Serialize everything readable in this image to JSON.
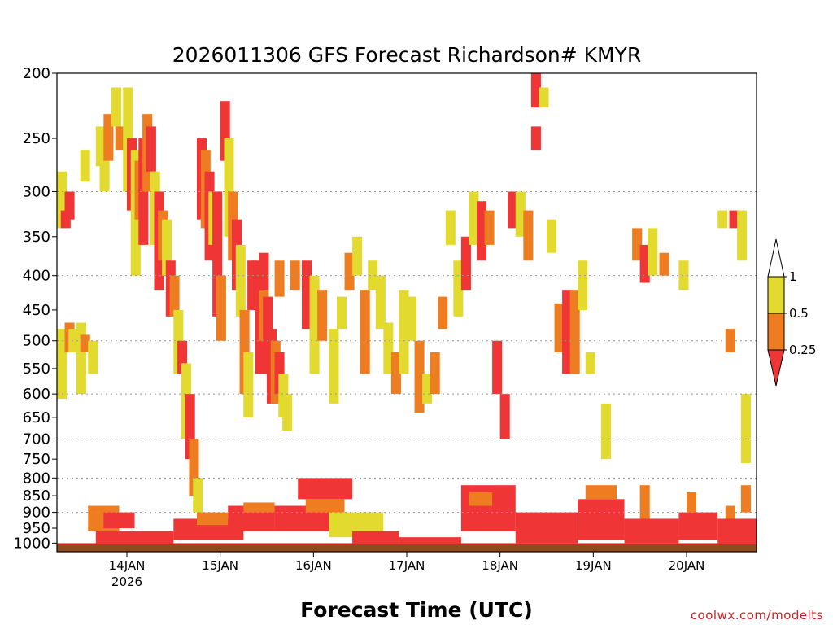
{
  "chart_data": {
    "type": "heatmap",
    "title": "2026011306 GFS Forecast Richardson# KMYR",
    "xlabel": "Forecast Time (UTC)",
    "ylabel": "",
    "credit": "coolwx.com/modelts",
    "y_axis": {
      "scale": "log",
      "reversed": true,
      "range": [
        200,
        1030
      ],
      "ticks": [
        200,
        250,
        300,
        350,
        400,
        450,
        500,
        550,
        600,
        650,
        700,
        750,
        800,
        850,
        900,
        950,
        1000
      ],
      "gridlines": [
        300,
        400,
        500,
        600,
        700,
        800,
        900
      ]
    },
    "x_axis": {
      "range_hours": [
        0,
        180
      ],
      "ticks": [
        {
          "label": "14JAN",
          "sublabel": "2026",
          "hour": 18
        },
        {
          "label": "15JAN",
          "sublabel": "",
          "hour": 42
        },
        {
          "label": "16JAN",
          "sublabel": "",
          "hour": 66
        },
        {
          "label": "17JAN",
          "sublabel": "",
          "hour": 90
        },
        {
          "label": "18JAN",
          "sublabel": "",
          "hour": 114
        },
        {
          "label": "19JAN",
          "sublabel": "",
          "hour": 138
        },
        {
          "label": "20JAN",
          "sublabel": "",
          "hour": 162
        }
      ]
    },
    "colorbar": {
      "labels": [
        "1",
        "0.5",
        "0.25"
      ],
      "bins": [
        {
          "range": "0.5-1",
          "color": "#e3da2f"
        },
        {
          "range": "0.25-0.5",
          "color": "#ee7c20"
        },
        {
          "range": "<0.25",
          "color": "#ef3535"
        }
      ]
    },
    "colors": {
      "yellow": "#e3da2f",
      "orange": "#ee7c20",
      "red": "#ef3535",
      "ground": "#8b4c1f"
    },
    "cells": [
      {
        "t": 0,
        "p0": 280,
        "p1": 340,
        "c": "yellow"
      },
      {
        "t": 1,
        "p0": 320,
        "p1": 340,
        "c": "red"
      },
      {
        "t": 2,
        "p0": 300,
        "p1": 330,
        "c": "red"
      },
      {
        "t": 0,
        "p0": 480,
        "p1": 610,
        "c": "yellow"
      },
      {
        "t": 2,
        "p0": 470,
        "p1": 520,
        "c": "orange"
      },
      {
        "t": 3,
        "p0": 480,
        "p1": 520,
        "c": "yellow"
      },
      {
        "t": 5,
        "p0": 470,
        "p1": 600,
        "c": "yellow"
      },
      {
        "t": 6,
        "p0": 490,
        "p1": 520,
        "c": "orange"
      },
      {
        "t": 8,
        "p0": 500,
        "p1": 560,
        "c": "yellow"
      },
      {
        "t": 10,
        "p0": 240,
        "p1": 275,
        "c": "yellow"
      },
      {
        "t": 6,
        "p0": 260,
        "p1": 290,
        "c": "yellow"
      },
      {
        "t": 11,
        "p0": 260,
        "p1": 300,
        "c": "yellow"
      },
      {
        "t": 12,
        "p0": 230,
        "p1": 270,
        "c": "orange"
      },
      {
        "t": 14,
        "p0": 210,
        "p1": 240,
        "c": "yellow"
      },
      {
        "t": 15,
        "p0": 240,
        "p1": 260,
        "c": "orange"
      },
      {
        "t": 17,
        "p0": 210,
        "p1": 300,
        "c": "yellow"
      },
      {
        "t": 18,
        "p0": 250,
        "p1": 320,
        "c": "red"
      },
      {
        "t": 19,
        "p0": 260,
        "p1": 400,
        "c": "yellow"
      },
      {
        "t": 20,
        "p0": 270,
        "p1": 330,
        "c": "orange"
      },
      {
        "t": 21,
        "p0": 250,
        "p1": 360,
        "c": "red"
      },
      {
        "t": 22,
        "p0": 230,
        "p1": 300,
        "c": "orange"
      },
      {
        "t": 23,
        "p0": 240,
        "p1": 280,
        "c": "red"
      },
      {
        "t": 24,
        "p0": 280,
        "p1": 360,
        "c": "yellow"
      },
      {
        "t": 25,
        "p0": 300,
        "p1": 420,
        "c": "red"
      },
      {
        "t": 26,
        "p0": 320,
        "p1": 380,
        "c": "orange"
      },
      {
        "t": 27,
        "p0": 330,
        "p1": 400,
        "c": "yellow"
      },
      {
        "t": 28,
        "p0": 380,
        "p1": 460,
        "c": "red"
      },
      {
        "t": 29,
        "p0": 400,
        "p1": 460,
        "c": "orange"
      },
      {
        "t": 30,
        "p0": 450,
        "p1": 560,
        "c": "yellow"
      },
      {
        "t": 31,
        "p0": 500,
        "p1": 560,
        "c": "red"
      },
      {
        "t": 32,
        "p0": 540,
        "p1": 700,
        "c": "yellow"
      },
      {
        "t": 33,
        "p0": 600,
        "p1": 750,
        "c": "red"
      },
      {
        "t": 34,
        "p0": 700,
        "p1": 850,
        "c": "orange"
      },
      {
        "t": 35,
        "p0": 800,
        "p1": 900,
        "c": "yellow"
      },
      {
        "t": 36,
        "p0": 250,
        "p1": 330,
        "c": "red"
      },
      {
        "t": 37,
        "p0": 260,
        "p1": 340,
        "c": "orange"
      },
      {
        "t": 38,
        "p0": 280,
        "p1": 380,
        "c": "red"
      },
      {
        "t": 39,
        "p0": 300,
        "p1": 360,
        "c": "yellow"
      },
      {
        "t": 40,
        "p0": 300,
        "p1": 460,
        "c": "red"
      },
      {
        "t": 41,
        "p0": 400,
        "p1": 500,
        "c": "orange"
      },
      {
        "t": 42,
        "p0": 220,
        "p1": 270,
        "c": "red"
      },
      {
        "t": 43,
        "p0": 250,
        "p1": 350,
        "c": "yellow"
      },
      {
        "t": 44,
        "p0": 300,
        "p1": 380,
        "c": "orange"
      },
      {
        "t": 45,
        "p0": 330,
        "p1": 420,
        "c": "red"
      },
      {
        "t": 46,
        "p0": 360,
        "p1": 460,
        "c": "yellow"
      },
      {
        "t": 47,
        "p0": 450,
        "p1": 600,
        "c": "orange"
      },
      {
        "t": 48,
        "p0": 520,
        "p1": 650,
        "c": "yellow"
      },
      {
        "t": 49,
        "p0": 380,
        "p1": 450,
        "c": "red"
      },
      {
        "t": 50,
        "p0": 380,
        "p1": 450,
        "c": "red"
      },
      {
        "t": 51,
        "p0": 400,
        "p1": 560,
        "c": "red"
      },
      {
        "t": 52,
        "p0": 420,
        "p1": 500,
        "c": "orange"
      },
      {
        "t": 53,
        "p0": 430,
        "p1": 560,
        "c": "red"
      },
      {
        "t": 54,
        "p0": 480,
        "p1": 620,
        "c": "red"
      },
      {
        "t": 55,
        "p0": 500,
        "p1": 620,
        "c": "orange"
      },
      {
        "t": 56,
        "p0": 520,
        "p1": 600,
        "c": "red"
      },
      {
        "t": 57,
        "p0": 560,
        "p1": 650,
        "c": "yellow"
      },
      {
        "t": 58,
        "p0": 600,
        "p1": 680,
        "c": "yellow"
      },
      {
        "t": 52,
        "p0": 370,
        "p1": 420,
        "c": "red"
      },
      {
        "t": 56,
        "p0": 380,
        "p1": 430,
        "c": "orange"
      },
      {
        "t": 60,
        "p0": 380,
        "p1": 420,
        "c": "orange"
      },
      {
        "t": 63,
        "p0": 380,
        "p1": 480,
        "c": "red"
      },
      {
        "t": 65,
        "p0": 400,
        "p1": 560,
        "c": "yellow"
      },
      {
        "t": 67,
        "p0": 420,
        "p1": 500,
        "c": "orange"
      },
      {
        "t": 70,
        "p0": 480,
        "p1": 620,
        "c": "yellow"
      },
      {
        "t": 72,
        "p0": 430,
        "p1": 480,
        "c": "yellow"
      },
      {
        "t": 74,
        "p0": 370,
        "p1": 420,
        "c": "orange"
      },
      {
        "t": 76,
        "p0": 350,
        "p1": 400,
        "c": "yellow"
      },
      {
        "t": 78,
        "p0": 420,
        "p1": 560,
        "c": "orange"
      },
      {
        "t": 80,
        "p0": 380,
        "p1": 420,
        "c": "yellow"
      },
      {
        "t": 82,
        "p0": 400,
        "p1": 480,
        "c": "yellow"
      },
      {
        "t": 84,
        "p0": 470,
        "p1": 560,
        "c": "yellow"
      },
      {
        "t": 86,
        "p0": 520,
        "p1": 600,
        "c": "orange"
      },
      {
        "t": 88,
        "p0": 420,
        "p1": 560,
        "c": "yellow"
      },
      {
        "t": 90,
        "p0": 430,
        "p1": 500,
        "c": "yellow"
      },
      {
        "t": 92,
        "p0": 500,
        "p1": 640,
        "c": "orange"
      },
      {
        "t": 94,
        "p0": 560,
        "p1": 620,
        "c": "yellow"
      },
      {
        "t": 96,
        "p0": 520,
        "p1": 600,
        "c": "orange"
      },
      {
        "t": 98,
        "p0": 430,
        "p1": 480,
        "c": "orange"
      },
      {
        "t": 100,
        "p0": 320,
        "p1": 360,
        "c": "yellow"
      },
      {
        "t": 102,
        "p0": 380,
        "p1": 460,
        "c": "yellow"
      },
      {
        "t": 104,
        "p0": 350,
        "p1": 420,
        "c": "red"
      },
      {
        "t": 106,
        "p0": 300,
        "p1": 360,
        "c": "yellow"
      },
      {
        "t": 108,
        "p0": 310,
        "p1": 380,
        "c": "red"
      },
      {
        "t": 110,
        "p0": 320,
        "p1": 360,
        "c": "orange"
      },
      {
        "t": 112,
        "p0": 500,
        "p1": 600,
        "c": "red"
      },
      {
        "t": 114,
        "p0": 600,
        "p1": 700,
        "c": "red"
      },
      {
        "t": 116,
        "p0": 300,
        "p1": 340,
        "c": "red"
      },
      {
        "t": 118,
        "p0": 300,
        "p1": 350,
        "c": "yellow"
      },
      {
        "t": 120,
        "p0": 320,
        "p1": 380,
        "c": "orange"
      },
      {
        "t": 122,
        "p0": 200,
        "p1": 225,
        "c": "red"
      },
      {
        "t": 124,
        "p0": 210,
        "p1": 225,
        "c": "yellow"
      },
      {
        "t": 122,
        "p0": 240,
        "p1": 260,
        "c": "red"
      },
      {
        "t": 126,
        "p0": 330,
        "p1": 370,
        "c": "yellow"
      },
      {
        "t": 128,
        "p0": 440,
        "p1": 520,
        "c": "orange"
      },
      {
        "t": 130,
        "p0": 420,
        "p1": 560,
        "c": "red"
      },
      {
        "t": 132,
        "p0": 420,
        "p1": 560,
        "c": "orange"
      },
      {
        "t": 136,
        "p0": 520,
        "p1": 560,
        "c": "yellow"
      },
      {
        "t": 134,
        "p0": 380,
        "p1": 450,
        "c": "yellow"
      },
      {
        "t": 140,
        "p0": 620,
        "p1": 750,
        "c": "yellow"
      },
      {
        "t": 148,
        "p0": 340,
        "p1": 380,
        "c": "orange"
      },
      {
        "t": 150,
        "p0": 360,
        "p1": 410,
        "c": "red"
      },
      {
        "t": 152,
        "p0": 340,
        "p1": 400,
        "c": "yellow"
      },
      {
        "t": 155,
        "p0": 370,
        "p1": 400,
        "c": "orange"
      },
      {
        "t": 160,
        "p0": 380,
        "p1": 420,
        "c": "yellow"
      },
      {
        "t": 170,
        "p0": 320,
        "p1": 340,
        "c": "yellow"
      },
      {
        "t": 173,
        "p0": 320,
        "p1": 340,
        "c": "red"
      },
      {
        "t": 175,
        "p0": 320,
        "p1": 380,
        "c": "yellow"
      },
      {
        "t": 172,
        "p0": 480,
        "p1": 520,
        "c": "orange"
      },
      {
        "t": 176,
        "p0": 600,
        "p1": 760,
        "c": "yellow"
      },
      {
        "t": 176,
        "p0": 820,
        "p1": 900,
        "c": "orange"
      },
      {
        "t": 150,
        "p0": 820,
        "p1": 920,
        "c": "orange"
      },
      {
        "t": 162,
        "p0": 840,
        "p1": 900,
        "c": "orange"
      },
      {
        "t": 172,
        "p0": 880,
        "p1": 940,
        "c": "orange"
      }
    ],
    "boundary_layer": [
      {
        "t0": 8,
        "t1": 16,
        "p0": 880,
        "p1": 960,
        "c": "orange"
      },
      {
        "t0": 12,
        "t1": 20,
        "p0": 900,
        "p1": 950,
        "c": "red"
      },
      {
        "t0": 10,
        "t1": 30,
        "p0": 960,
        "p1": 1010,
        "c": "red"
      },
      {
        "t0": 30,
        "t1": 48,
        "p0": 920,
        "p1": 990,
        "c": "red"
      },
      {
        "t0": 36,
        "t1": 44,
        "p0": 900,
        "p1": 940,
        "c": "orange"
      },
      {
        "t0": 44,
        "t1": 56,
        "p0": 880,
        "p1": 960,
        "c": "red"
      },
      {
        "t0": 48,
        "t1": 56,
        "p0": 870,
        "p1": 900,
        "c": "orange"
      },
      {
        "t0": 56,
        "t1": 70,
        "p0": 880,
        "p1": 960,
        "c": "red"
      },
      {
        "t0": 62,
        "t1": 76,
        "p0": 800,
        "p1": 860,
        "c": "red"
      },
      {
        "t0": 64,
        "t1": 74,
        "p0": 860,
        "p1": 900,
        "c": "orange"
      },
      {
        "t0": 70,
        "t1": 84,
        "p0": 900,
        "p1": 980,
        "c": "yellow"
      },
      {
        "t0": 76,
        "t1": 88,
        "p0": 960,
        "p1": 1010,
        "c": "red"
      },
      {
        "t0": 88,
        "t1": 104,
        "p0": 980,
        "p1": 1010,
        "c": "red"
      },
      {
        "t0": 104,
        "t1": 118,
        "p0": 820,
        "p1": 960,
        "c": "red"
      },
      {
        "t0": 106,
        "t1": 112,
        "p0": 840,
        "p1": 880,
        "c": "orange"
      },
      {
        "t0": 118,
        "t1": 134,
        "p0": 900,
        "p1": 1000,
        "c": "red"
      },
      {
        "t0": 134,
        "t1": 146,
        "p0": 860,
        "p1": 990,
        "c": "red"
      },
      {
        "t0": 136,
        "t1": 144,
        "p0": 820,
        "p1": 860,
        "c": "orange"
      },
      {
        "t0": 146,
        "t1": 160,
        "p0": 920,
        "p1": 1000,
        "c": "red"
      },
      {
        "t0": 160,
        "t1": 170,
        "p0": 900,
        "p1": 990,
        "c": "red"
      },
      {
        "t0": 170,
        "t1": 180,
        "p0": 920,
        "p1": 1010,
        "c": "red"
      },
      {
        "t0": 0,
        "t1": 180,
        "p0": 1000,
        "p1": 1015,
        "c": "red"
      }
    ]
  }
}
